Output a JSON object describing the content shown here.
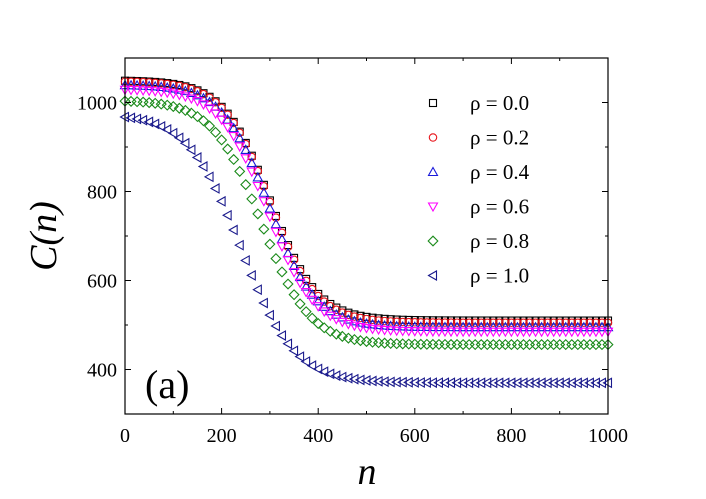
{
  "chart_data": {
    "type": "scatter",
    "panel_label": "(a)",
    "xlabel": "n",
    "ylabel": "C(n)",
    "xlim": [
      0,
      1000
    ],
    "ylim": [
      300,
      1100
    ],
    "x_ticks": [
      0,
      200,
      400,
      600,
      800,
      1000
    ],
    "y_ticks": [
      400,
      600,
      800,
      1000
    ],
    "legend_placement": "top-right",
    "series": [
      {
        "name": "ρ = 0.0",
        "marker": "square",
        "color": "#000000",
        "curve": {
          "initial": 1050,
          "final": 510,
          "midpoint": 300,
          "width": 48
        }
      },
      {
        "name": "ρ = 0.2",
        "marker": "circle",
        "color": "#e8141b",
        "curve": {
          "initial": 1048,
          "final": 505,
          "midpoint": 300,
          "width": 48
        }
      },
      {
        "name": "ρ = 0.4",
        "marker": "triangle-up",
        "color": "#1a1adb",
        "curve": {
          "initial": 1040,
          "final": 495,
          "midpoint": 298,
          "width": 48
        }
      },
      {
        "name": "ρ = 0.6",
        "marker": "triangle-down",
        "color": "#ff00ff",
        "curve": {
          "initial": 1030,
          "final": 485,
          "midpoint": 295,
          "width": 49
        }
      },
      {
        "name": "ρ = 0.8",
        "marker": "diamond",
        "color": "#1a8a1a",
        "curve": {
          "initial": 1005,
          "final": 456,
          "midpoint": 282,
          "width": 50
        }
      },
      {
        "name": "ρ = 1.0",
        "marker": "triangle-left",
        "color": "#1a1a8c",
        "curve": {
          "initial": 975,
          "final": 370,
          "midpoint": 240,
          "width": 55
        }
      }
    ]
  }
}
